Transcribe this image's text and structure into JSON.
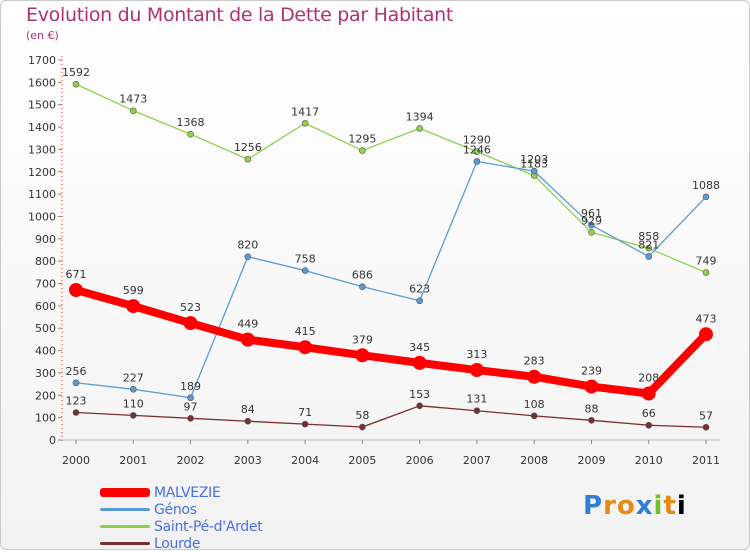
{
  "header": {
    "title": "Evolution du Montant de la Dette par Habitant",
    "subtitle": "(en €)"
  },
  "logo": {
    "text": "Proxiti"
  },
  "chart_data": {
    "type": "line",
    "title": "Evolution du Montant de la Dette par Habitant",
    "subtitle": "(en €)",
    "ylim": [
      0,
      1700
    ],
    "ytick_step": 100,
    "grid": false,
    "legend_position": "bottom-left",
    "categories": [
      "2000",
      "2001",
      "2002",
      "2003",
      "2004",
      "2005",
      "2006",
      "2007",
      "2008",
      "2009",
      "2010",
      "2011"
    ],
    "series": [
      {
        "name": "MALVEZIE",
        "color": "#ff0000",
        "values": [
          671,
          599,
          523,
          449,
          415,
          379,
          345,
          313,
          283,
          239,
          208,
          473
        ]
      },
      {
        "name": "Génos",
        "color": "#5b9bd5",
        "values": [
          256,
          227,
          189,
          820,
          758,
          686,
          623,
          1246,
          1203,
          961,
          821,
          1088
        ]
      },
      {
        "name": "Saint-Pé-d'Ardet",
        "color": "#8ed24a",
        "values": [
          1592,
          1473,
          1368,
          1256,
          1417,
          1295,
          1394,
          1290,
          1183,
          929,
          858,
          749
        ]
      },
      {
        "name": "Lourde",
        "color": "#7a2e2e",
        "values": [
          123,
          110,
          97,
          84,
          71,
          58,
          153,
          131,
          108,
          88,
          66,
          57
        ]
      }
    ]
  }
}
